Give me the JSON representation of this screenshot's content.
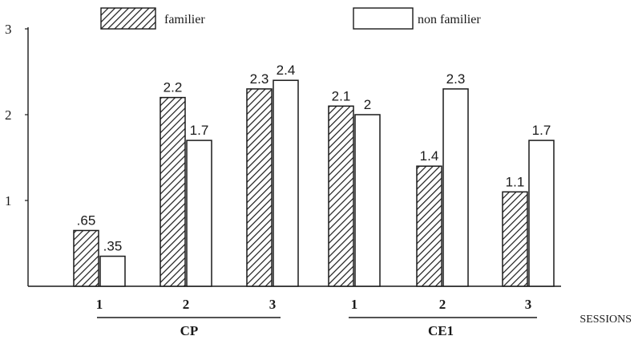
{
  "chart_data": {
    "type": "bar",
    "legend": {
      "position": "top",
      "entries": [
        {
          "series": "familier",
          "label": "familier",
          "fill": "hatched"
        },
        {
          "series": "non familier",
          "label": "non familier",
          "fill": "white"
        }
      ]
    },
    "y_axis": {
      "range": [
        0,
        3
      ],
      "ticks": [
        "1",
        "2",
        "3"
      ],
      "tick_values": [
        1,
        2,
        3
      ]
    },
    "x_axis": {
      "label": "SESSIONS"
    },
    "groups": [
      {
        "label": "CP",
        "sessions": [
          {
            "label": "1",
            "familier": 0.65,
            "non_familier": 0.35,
            "familier_label": ".65",
            "non_familier_label": ".35"
          },
          {
            "label": "2",
            "familier": 2.2,
            "non_familier": 1.7,
            "familier_label": "2.2",
            "non_familier_label": "1.7"
          },
          {
            "label": "3",
            "familier": 2.3,
            "non_familier": 2.4,
            "familier_label": "2.3",
            "non_familier_label": "2.4"
          }
        ]
      },
      {
        "label": "CE1",
        "sessions": [
          {
            "label": "1",
            "familier": 2.1,
            "non_familier": 2.0,
            "familier_label": "2.1",
            "non_familier_label": "2"
          },
          {
            "label": "2",
            "familier": 1.4,
            "non_familier": 2.3,
            "familier_label": "1.4",
            "non_familier_label": "2.3"
          },
          {
            "label": "3",
            "familier": 1.1,
            "non_familier": 1.7,
            "familier_label": "1.1",
            "non_familier_label": "1.7"
          }
        ]
      }
    ],
    "colors": {
      "ink": "#1a1a1a",
      "background": "#ffffff"
    }
  }
}
